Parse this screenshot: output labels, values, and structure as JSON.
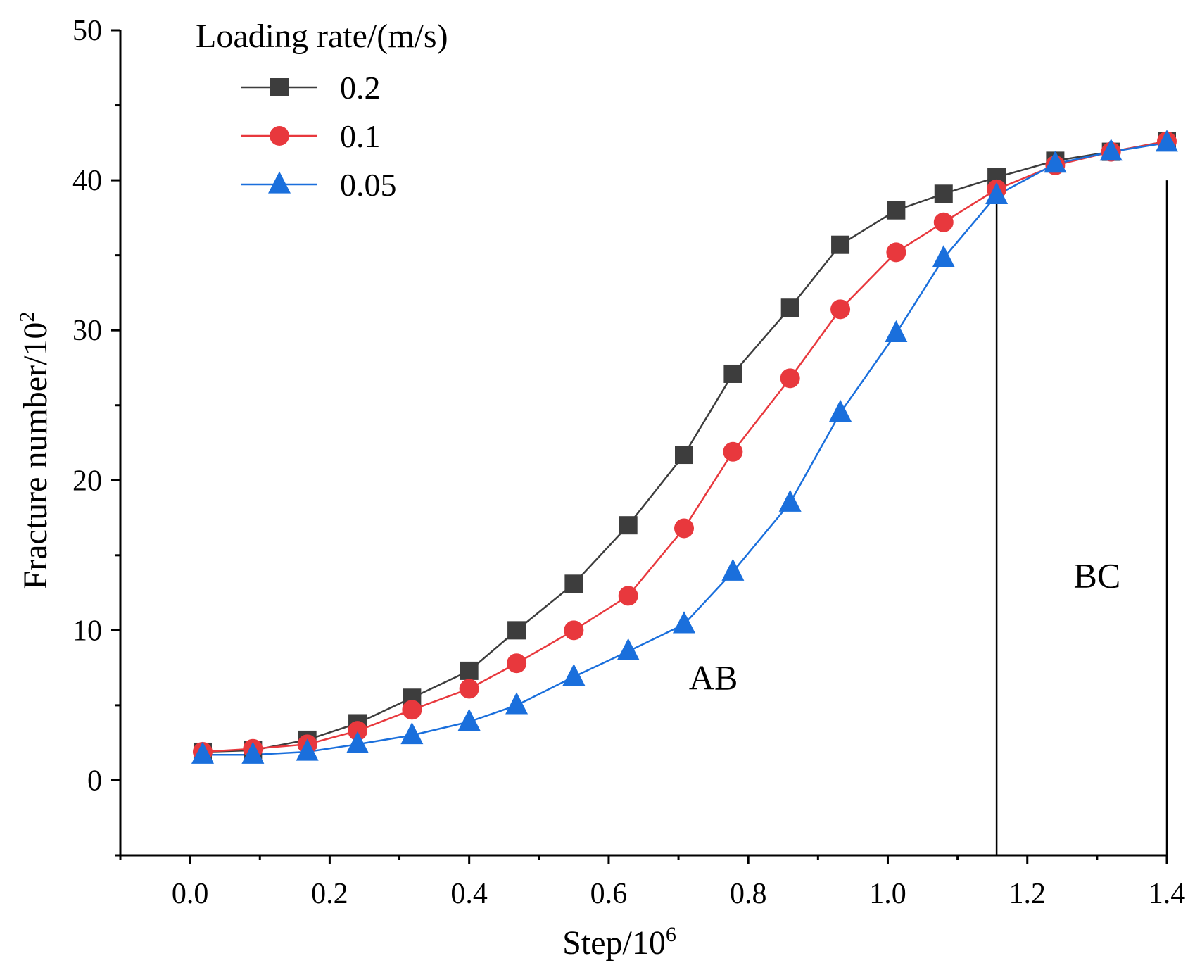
{
  "chart_data": {
    "type": "line",
    "title": "",
    "xlabel": "Step/10",
    "xlabel_sup": "6",
    "ylabel": "Fracture number/10",
    "ylabel_sup": "2",
    "xlim": [
      -0.1,
      1.4
    ],
    "ylim": [
      -5,
      50
    ],
    "xticks": [
      0.0,
      0.2,
      0.4,
      0.6,
      0.8,
      1.0,
      1.2,
      1.4
    ],
    "xtick_labels": [
      "0.0",
      "0.2",
      "0.4",
      "0.6",
      "0.8",
      "1.0",
      "1.2",
      "1.4"
    ],
    "yticks": [
      0,
      10,
      20,
      30,
      40,
      50
    ],
    "ytick_labels": [
      "0",
      "10",
      "20",
      "30",
      "40",
      "50"
    ],
    "legend": {
      "title": "Loading rate/(m/s)",
      "position": "top-left"
    },
    "x": [
      0.018,
      0.09,
      0.168,
      0.24,
      0.318,
      0.4,
      0.468,
      0.55,
      0.628,
      0.708,
      0.778,
      0.86,
      0.932,
      1.012,
      1.08,
      1.156,
      1.24,
      1.32,
      1.4
    ],
    "series": [
      {
        "name": "0.2",
        "marker": "square",
        "color": "#3d3d3d",
        "values": [
          1.9,
          2.0,
          2.7,
          3.8,
          5.5,
          7.3,
          10.0,
          13.1,
          17.0,
          21.7,
          27.1,
          31.5,
          35.7,
          38.0,
          39.1,
          40.2,
          41.3,
          41.9,
          42.6
        ]
      },
      {
        "name": "0.1",
        "marker": "circle",
        "color": "#e8383d",
        "values": [
          1.9,
          2.1,
          2.4,
          3.3,
          4.7,
          6.1,
          7.8,
          10.0,
          12.3,
          16.8,
          21.9,
          26.8,
          31.4,
          35.2,
          37.2,
          39.4,
          41.0,
          41.9,
          42.6
        ]
      },
      {
        "name": "0.05",
        "marker": "triangle",
        "color": "#1a6fdc",
        "values": [
          1.7,
          1.7,
          1.9,
          2.4,
          3.0,
          3.9,
          5.0,
          6.9,
          8.6,
          10.4,
          13.9,
          18.5,
          24.5,
          29.8,
          34.8,
          39.0,
          41.1,
          41.9,
          42.5
        ]
      }
    ],
    "vertical_lines": [
      1.156,
      1.4
    ],
    "annotations": [
      {
        "text": "AB",
        "x": 0.75,
        "y": 6.8
      },
      {
        "text": "BC",
        "x": 1.3,
        "y": 13.6
      }
    ]
  }
}
